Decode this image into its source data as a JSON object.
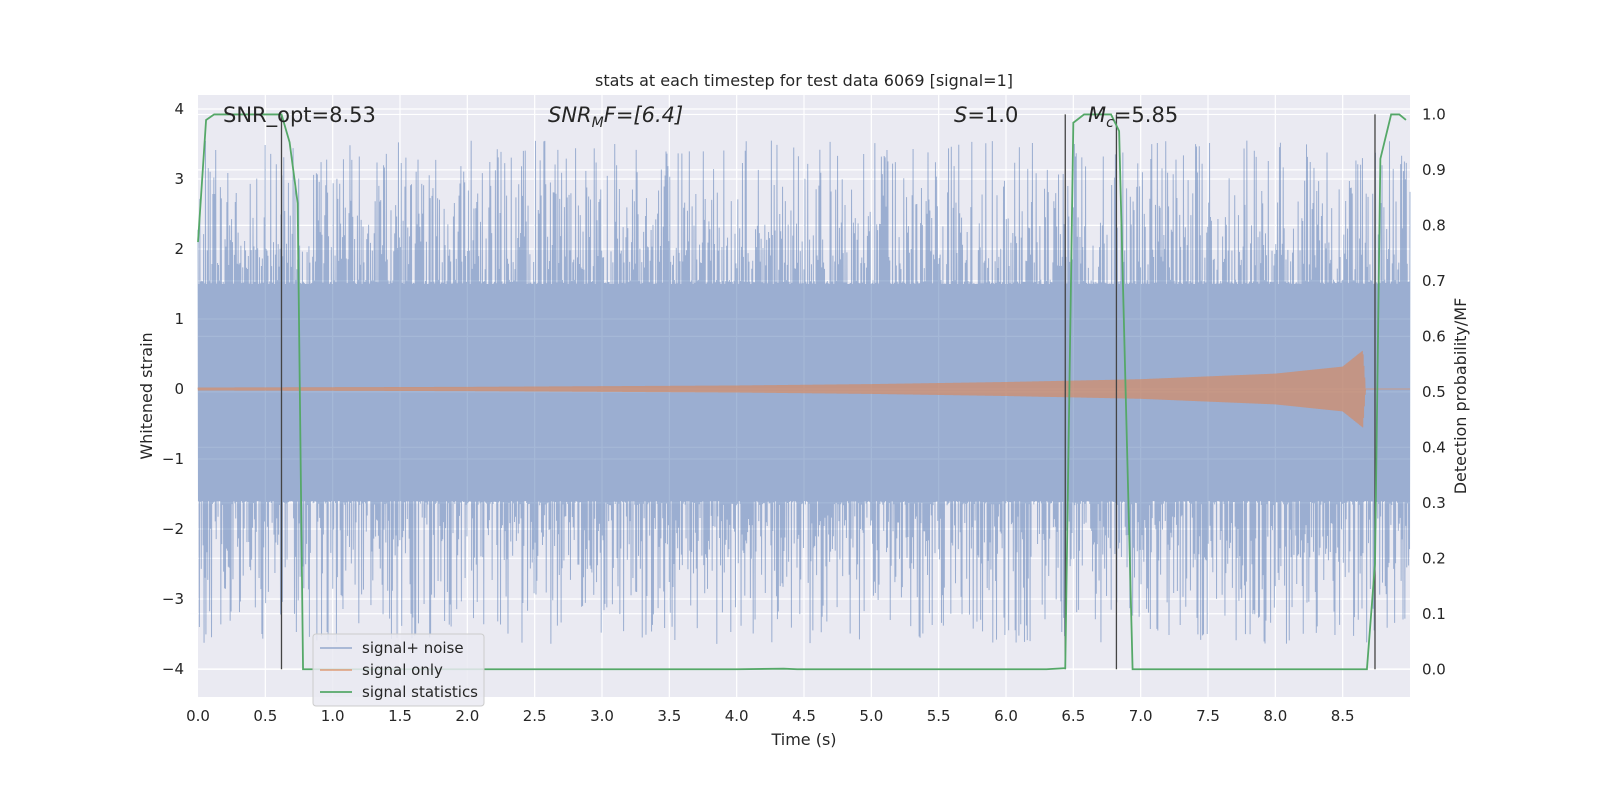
{
  "chart_data": {
    "type": "line",
    "title": "stats at each timestep for test data 6069 [signal=1]",
    "xlabel": "Time (s)",
    "ylabel": "Whitened strain",
    "y2label": "Detection probability/MF",
    "xlim": [
      0,
      9
    ],
    "ylim": [
      -4.4,
      4.2
    ],
    "y2lim": [
      -0.05,
      1.035
    ],
    "xticks": [
      "0.0",
      "0.5",
      "1.0",
      "1.5",
      "2.0",
      "2.5",
      "3.0",
      "3.5",
      "4.0",
      "4.5",
      "5.0",
      "5.5",
      "6.0",
      "6.5",
      "7.0",
      "7.5",
      "8.0",
      "8.5"
    ],
    "yticks": [
      "4",
      "3",
      "2",
      "1",
      "0",
      "−1",
      "−2",
      "−3",
      "−4"
    ],
    "y2ticks": [
      "1.0",
      "0.9",
      "0.8",
      "0.7",
      "0.6",
      "0.5",
      "0.4",
      "0.3",
      "0.2",
      "0.1",
      "0.0"
    ],
    "grid": true,
    "legend_position": "lower-left",
    "annotations": {
      "snr_opt": "SNR_opt=8.53",
      "snr_mf_main": "SNR",
      "snr_mf_sub": "M",
      "snr_mf_rest": "F=[6.4]",
      "s_main": "S",
      "s_rest": "=1.0",
      "mc_main": "M",
      "mc_sub": "c",
      "mc_rest": "=5.85"
    },
    "series": [
      {
        "name": "signal+ noise",
        "color": "#4c72b0",
        "amplitude_envelope": {
          "typical_band": [
            -1.6,
            1.5
          ],
          "peak_max": 3.55,
          "peak_min": -3.65
        }
      },
      {
        "name": "signal only",
        "color": "#dd8452",
        "envelope": {
          "t": [
            0.0,
            2.0,
            4.0,
            5.0,
            6.0,
            7.0,
            8.0,
            8.5,
            8.65,
            8.67
          ],
          "amp": [
            0.02,
            0.03,
            0.05,
            0.07,
            0.1,
            0.14,
            0.22,
            0.32,
            0.55,
            0.0
          ]
        }
      },
      {
        "name": "signal statistics",
        "color": "#55a868",
        "x": [
          0.0,
          0.06,
          0.12,
          0.3,
          0.5,
          0.62,
          0.68,
          0.74,
          0.78,
          1.0,
          4.0,
          4.35,
          4.45,
          6.3,
          6.44,
          6.5,
          6.58,
          6.78,
          6.84,
          6.94,
          8.6,
          8.68,
          8.74,
          8.78,
          8.86,
          8.92,
          8.97
        ],
        "y": [
          0.77,
          0.99,
          1.0,
          1.0,
          1.0,
          1.0,
          0.95,
          0.84,
          0.0,
          0.0,
          0.0,
          0.001,
          0.0,
          0.0,
          0.002,
          0.985,
          1.0,
          1.0,
          0.97,
          0.0,
          0.0,
          0.0,
          0.19,
          0.92,
          1.0,
          1.0,
          0.99
        ]
      }
    ],
    "vertical_markers_x": [
      0.62,
      6.44,
      6.82,
      8.74
    ]
  }
}
